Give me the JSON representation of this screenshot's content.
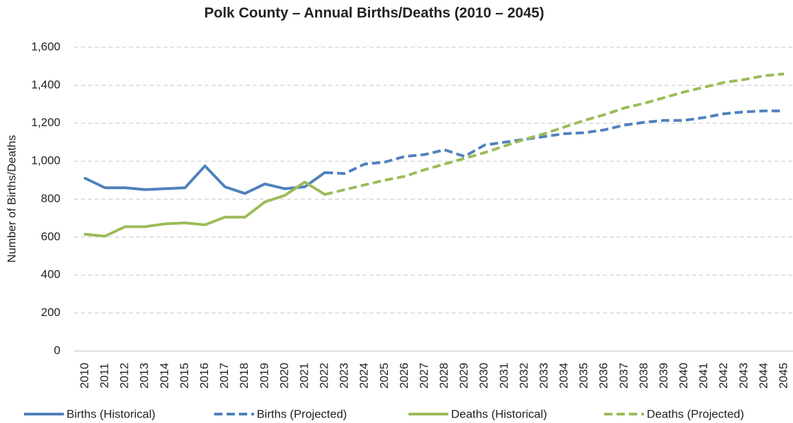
{
  "chart_data": {
    "type": "line",
    "title": "Polk County – Annual Births/Deaths (2010 – 2045)",
    "y_label": "Number of Births/Deaths",
    "categories": [
      "2010",
      "2011",
      "2012",
      "2013",
      "2014",
      "2015",
      "2016",
      "2017",
      "2018",
      "2019",
      "2020",
      "2021",
      "2022",
      "2023",
      "2024",
      "2025",
      "2026",
      "2027",
      "2028",
      "2029",
      "2030",
      "2031",
      "2032",
      "2033",
      "2034",
      "2035",
      "2036",
      "2037",
      "2038",
      "2039",
      "2040",
      "2041",
      "2042",
      "2043",
      "2044",
      "2045"
    ],
    "ylim": [
      0,
      1600
    ],
    "yticks": [
      0,
      200,
      400,
      600,
      800,
      {
        "value": 1000,
        "label": "1,000"
      },
      {
        "value": 1200,
        "label": "1,200"
      },
      {
        "value": 1400,
        "label": "1,400"
      },
      {
        "value": 1600,
        "label": "1,600"
      }
    ],
    "grid": true,
    "legend": "bottom",
    "series": [
      {
        "name": "Births (Historical)",
        "color": "#4f81bd",
        "dashed": false,
        "values": [
          910,
          860,
          860,
          850,
          855,
          860,
          975,
          865,
          830,
          880,
          855,
          865,
          940,
          null,
          null,
          null,
          null,
          null,
          null,
          null,
          null,
          null,
          null,
          null,
          null,
          null,
          null,
          null,
          null,
          null,
          null,
          null,
          null,
          null,
          null,
          null
        ]
      },
      {
        "name": "Births (Projected)",
        "color": "#4f81bd",
        "dashed": true,
        "values": [
          null,
          null,
          null,
          null,
          null,
          null,
          null,
          null,
          null,
          null,
          null,
          null,
          940,
          935,
          985,
          995,
          1025,
          1035,
          1060,
          1025,
          1085,
          1100,
          1115,
          1130,
          1145,
          1150,
          1165,
          1190,
          1205,
          1215,
          1215,
          1230,
          1250,
          1260,
          1265,
          1265
        ]
      },
      {
        "name": "Deaths (Historical)",
        "color": "#9bbb59",
        "dashed": false,
        "values": [
          615,
          605,
          655,
          655,
          670,
          675,
          665,
          705,
          705,
          785,
          820,
          890,
          825,
          null,
          null,
          null,
          null,
          null,
          null,
          null,
          null,
          null,
          null,
          null,
          null,
          null,
          null,
          null,
          null,
          null,
          null,
          null,
          null,
          null,
          null,
          null
        ]
      },
      {
        "name": "Deaths (Projected)",
        "color": "#9bbb59",
        "dashed": true,
        "values": [
          null,
          null,
          null,
          null,
          null,
          null,
          null,
          null,
          null,
          null,
          null,
          null,
          825,
          850,
          875,
          900,
          920,
          955,
          985,
          1015,
          1045,
          1080,
          1115,
          1145,
          1180,
          1215,
          1245,
          1280,
          1305,
          1335,
          1365,
          1390,
          1415,
          1430,
          1450,
          1460
        ]
      }
    ]
  }
}
